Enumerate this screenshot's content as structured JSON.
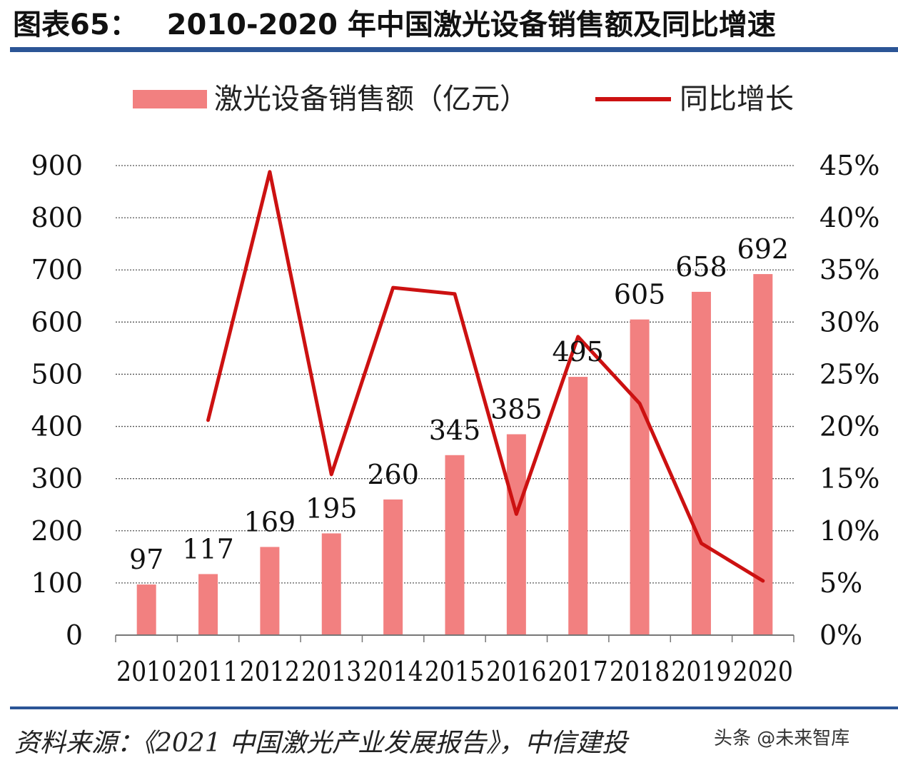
{
  "page": {
    "figure_label": "图表65：",
    "title": "2010-2020 年中国激光设备销售额及同比增速",
    "source": "资料来源：《2021 中国激光产业发展报告》，中信建投",
    "watermark": "头条 @未来智库"
  },
  "colors": {
    "bar": "#f28080",
    "line": "#cc1111",
    "rule": "#2b5596",
    "grid": "#555555"
  },
  "chart_data": {
    "type": "bar",
    "categories": [
      "2010",
      "2011",
      "2012",
      "2013",
      "2014",
      "2015",
      "2016",
      "2017",
      "2018",
      "2019",
      "2020"
    ],
    "series": [
      {
        "name": "激光设备销售额（亿元）",
        "type": "bar",
        "axis": "left",
        "values": [
          97,
          117,
          169,
          195,
          260,
          345,
          385,
          495,
          605,
          658,
          692
        ]
      },
      {
        "name": "同比增长",
        "type": "line",
        "axis": "right",
        "values": [
          null,
          20.6,
          44.4,
          15.4,
          33.3,
          32.7,
          11.6,
          28.6,
          22.2,
          8.8,
          5.2
        ]
      }
    ],
    "data_labels": [
      "97",
      "117",
      "169",
      "195",
      "260",
      "345",
      "385",
      "495",
      "605",
      "658",
      "692"
    ],
    "y_left": {
      "min": 0,
      "max": 900,
      "ticks": [
        "0",
        "100",
        "200",
        "300",
        "400",
        "500",
        "600",
        "700",
        "800",
        "900"
      ]
    },
    "y_right": {
      "min": 0,
      "max": 45,
      "ticks": [
        "0%",
        "5%",
        "10%",
        "15%",
        "20%",
        "25%",
        "30%",
        "35%",
        "40%",
        "45%"
      ]
    },
    "grid": true,
    "legend_position": "top"
  }
}
